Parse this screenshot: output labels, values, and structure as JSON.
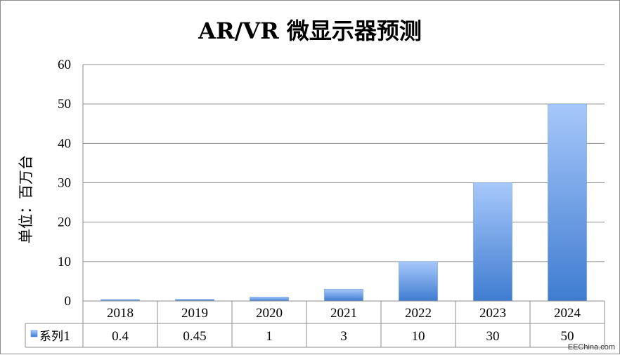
{
  "chart_data": {
    "type": "bar",
    "title": "AR/VR 微显示器预测",
    "ylabel": "单位：百万台",
    "xlabel": "",
    "categories": [
      "2018",
      "2019",
      "2020",
      "2021",
      "2022",
      "2023",
      "2024"
    ],
    "series": [
      {
        "name": "系列1",
        "values": [
          0.4,
          0.45,
          1,
          3,
          10,
          30,
          50
        ],
        "color": "#4a86d3"
      }
    ],
    "value_labels": [
      "0.4",
      "0.45",
      "1",
      "3",
      "10",
      "30",
      "50"
    ],
    "ylim": [
      0,
      60
    ],
    "yticks": [
      "0",
      "10",
      "20",
      "30",
      "40",
      "50",
      "60"
    ],
    "grid": true,
    "data_table": true,
    "legend": "data-table",
    "colors": {
      "bar_top": "#a7c8fb",
      "bar_bottom": "#3f7cd0",
      "grid": "#8c8c8c"
    }
  },
  "watermark": "EEChina.com"
}
